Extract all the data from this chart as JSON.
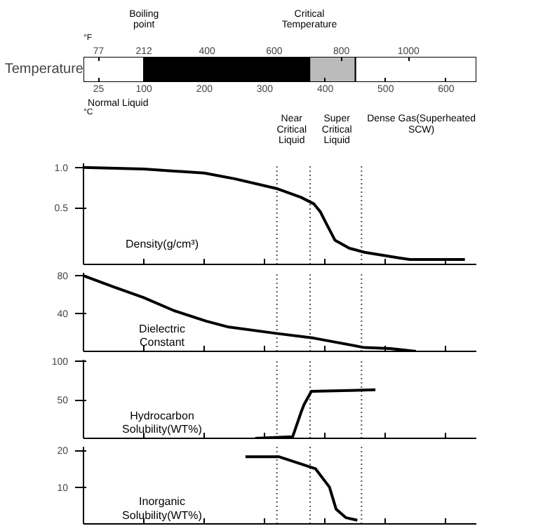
{
  "chart_data": [
    {
      "type": "bar",
      "orientation": "horizontal",
      "stacked": true,
      "categories": [
        null
      ],
      "ylabel": "Temperature",
      "xlabel": "°C",
      "x2label": "°F",
      "xlim": [
        0,
        650
      ],
      "xticks": [
        25,
        100,
        200,
        300,
        400,
        500,
        600
      ],
      "x2lim": [
        32,
        1202
      ],
      "x2ticks": [
        77,
        212,
        400,
        600,
        800,
        1000
      ],
      "series": [
        {
          "color": "#ffffff",
          "values": [
            100
          ]
        },
        {
          "color": "#000000",
          "values": [
            274
          ]
        },
        {
          "color": "#bbbbbb",
          "values": [
            76
          ]
        },
        {
          "color": "#ffffff",
          "values": [
            200
          ]
        }
      ],
      "annotations": [
        "Boiling\npoint",
        "Critical\nTemperature",
        "Normal Liquid",
        "Near\nCritical\nLiquid",
        "Super\nCritical\nLiquid",
        "Dense Gas(Superheated\nSCW)"
      ]
    },
    {
      "type": "line",
      "title": "Density(g/cm³)",
      "xlim": [
        0,
        650
      ],
      "xticks": [
        {
          "value": 100,
          "label": null
        },
        {
          "value": 200,
          "label": null
        },
        {
          "value": 300,
          "label": null
        },
        {
          "value": 400,
          "label": null
        },
        {
          "value": 500,
          "label": null
        },
        {
          "value": 600,
          "label": null
        }
      ],
      "ylim": [
        -0.2,
        1.05
      ],
      "yticks": [
        0.5,
        {
          "value": 1.0,
          "label": "1.0"
        }
      ],
      "tick_labels": "y",
      "ref_lines": [
        {
          "axis": "x",
          "value": 320,
          "line_style": "dotted"
        },
        {
          "axis": "x",
          "value": 375,
          "line_style": "dotted"
        },
        {
          "axis": "x",
          "value": 460,
          "line_style": "dotted"
        }
      ],
      "series": [
        {
          "color": "#000000",
          "x": [
            0,
            100,
            200,
            250,
            319,
            360,
            381,
            392,
            400,
            416,
            440,
            465,
            522,
            540,
            631
          ],
          "values": [
            1.0,
            0.98,
            0.93,
            0.86,
            0.74,
            0.63,
            0.55,
            0.45,
            0.33,
            0.1,
            0.0,
            -0.05,
            -0.12,
            -0.14,
            -0.14
          ]
        }
      ]
    },
    {
      "type": "line",
      "title": "Dielectric\nConstant",
      "xlim": [
        0,
        650
      ],
      "xticks": [
        {
          "value": 100,
          "label": null
        },
        {
          "value": 200,
          "label": null
        },
        {
          "value": 300,
          "label": null
        },
        {
          "value": 400,
          "label": null
        },
        {
          "value": 500,
          "label": null
        },
        {
          "value": 600,
          "label": null
        }
      ],
      "ylim": [
        0,
        83
      ],
      "yticks": [
        40,
        80
      ],
      "tick_labels": "y",
      "ref_lines": [
        {
          "axis": "x",
          "value": 320,
          "line_style": "dotted"
        },
        {
          "axis": "x",
          "value": 375,
          "line_style": "dotted"
        },
        {
          "axis": "x",
          "value": 460,
          "line_style": "dotted"
        }
      ],
      "series": [
        {
          "color": "#000000",
          "x": [
            0,
            50,
            99,
            150,
            203,
            238,
            319,
            381,
            465,
            508,
            550
          ],
          "values": [
            80,
            68,
            57,
            43,
            32,
            26,
            19,
            14,
            4,
            3,
            0
          ]
        }
      ]
    },
    {
      "type": "line",
      "title": "Hydrocarbon\nSolubility(WT%)",
      "xlim": [
        0,
        650
      ],
      "xticks": [
        {
          "value": 100,
          "label": null
        },
        {
          "value": 200,
          "label": null
        },
        {
          "value": 300,
          "label": null
        },
        {
          "value": 400,
          "label": null
        },
        {
          "value": 500,
          "label": null
        },
        {
          "value": 600,
          "label": null
        }
      ],
      "ylim": [
        0,
        102
      ],
      "yticks": [
        50,
        100
      ],
      "tick_labels": "y",
      "ref_lines": [
        {
          "axis": "x",
          "value": 320,
          "line_style": "dotted"
        },
        {
          "axis": "x",
          "value": 375,
          "line_style": "dotted"
        },
        {
          "axis": "x",
          "value": 460,
          "line_style": "dotted"
        }
      ],
      "series": [
        {
          "color": "#000000",
          "x": [
            284,
            346,
            361,
            365,
            377,
            483
          ],
          "values": [
            0,
            2,
            36,
            44,
            61,
            63
          ]
        }
      ]
    },
    {
      "type": "line",
      "title": "Inorganic\nSolubility(WT%)",
      "xlim": [
        0,
        650
      ],
      "xticks": [
        {
          "value": 100,
          "label": null
        },
        {
          "value": 200,
          "label": null
        },
        {
          "value": 300,
          "label": null
        },
        {
          "value": 400,
          "label": null
        },
        {
          "value": 500,
          "label": null
        },
        {
          "value": 600,
          "label": null
        }
      ],
      "ylim": [
        0,
        21
      ],
      "yticks": [
        10,
        20
      ],
      "tick_labels": "y",
      "ref_lines": [
        {
          "axis": "x",
          "value": 320,
          "line_style": "dotted"
        },
        {
          "axis": "x",
          "value": 375,
          "line_style": "dotted"
        },
        {
          "axis": "x",
          "value": 460,
          "line_style": "dotted"
        }
      ],
      "series": [
        {
          "color": "#000000",
          "x": [
            268,
            323,
            384,
            407,
            418,
            434,
            453
          ],
          "values": [
            18.3,
            18.3,
            15,
            10,
            4,
            1.7,
            1
          ]
        }
      ]
    }
  ]
}
